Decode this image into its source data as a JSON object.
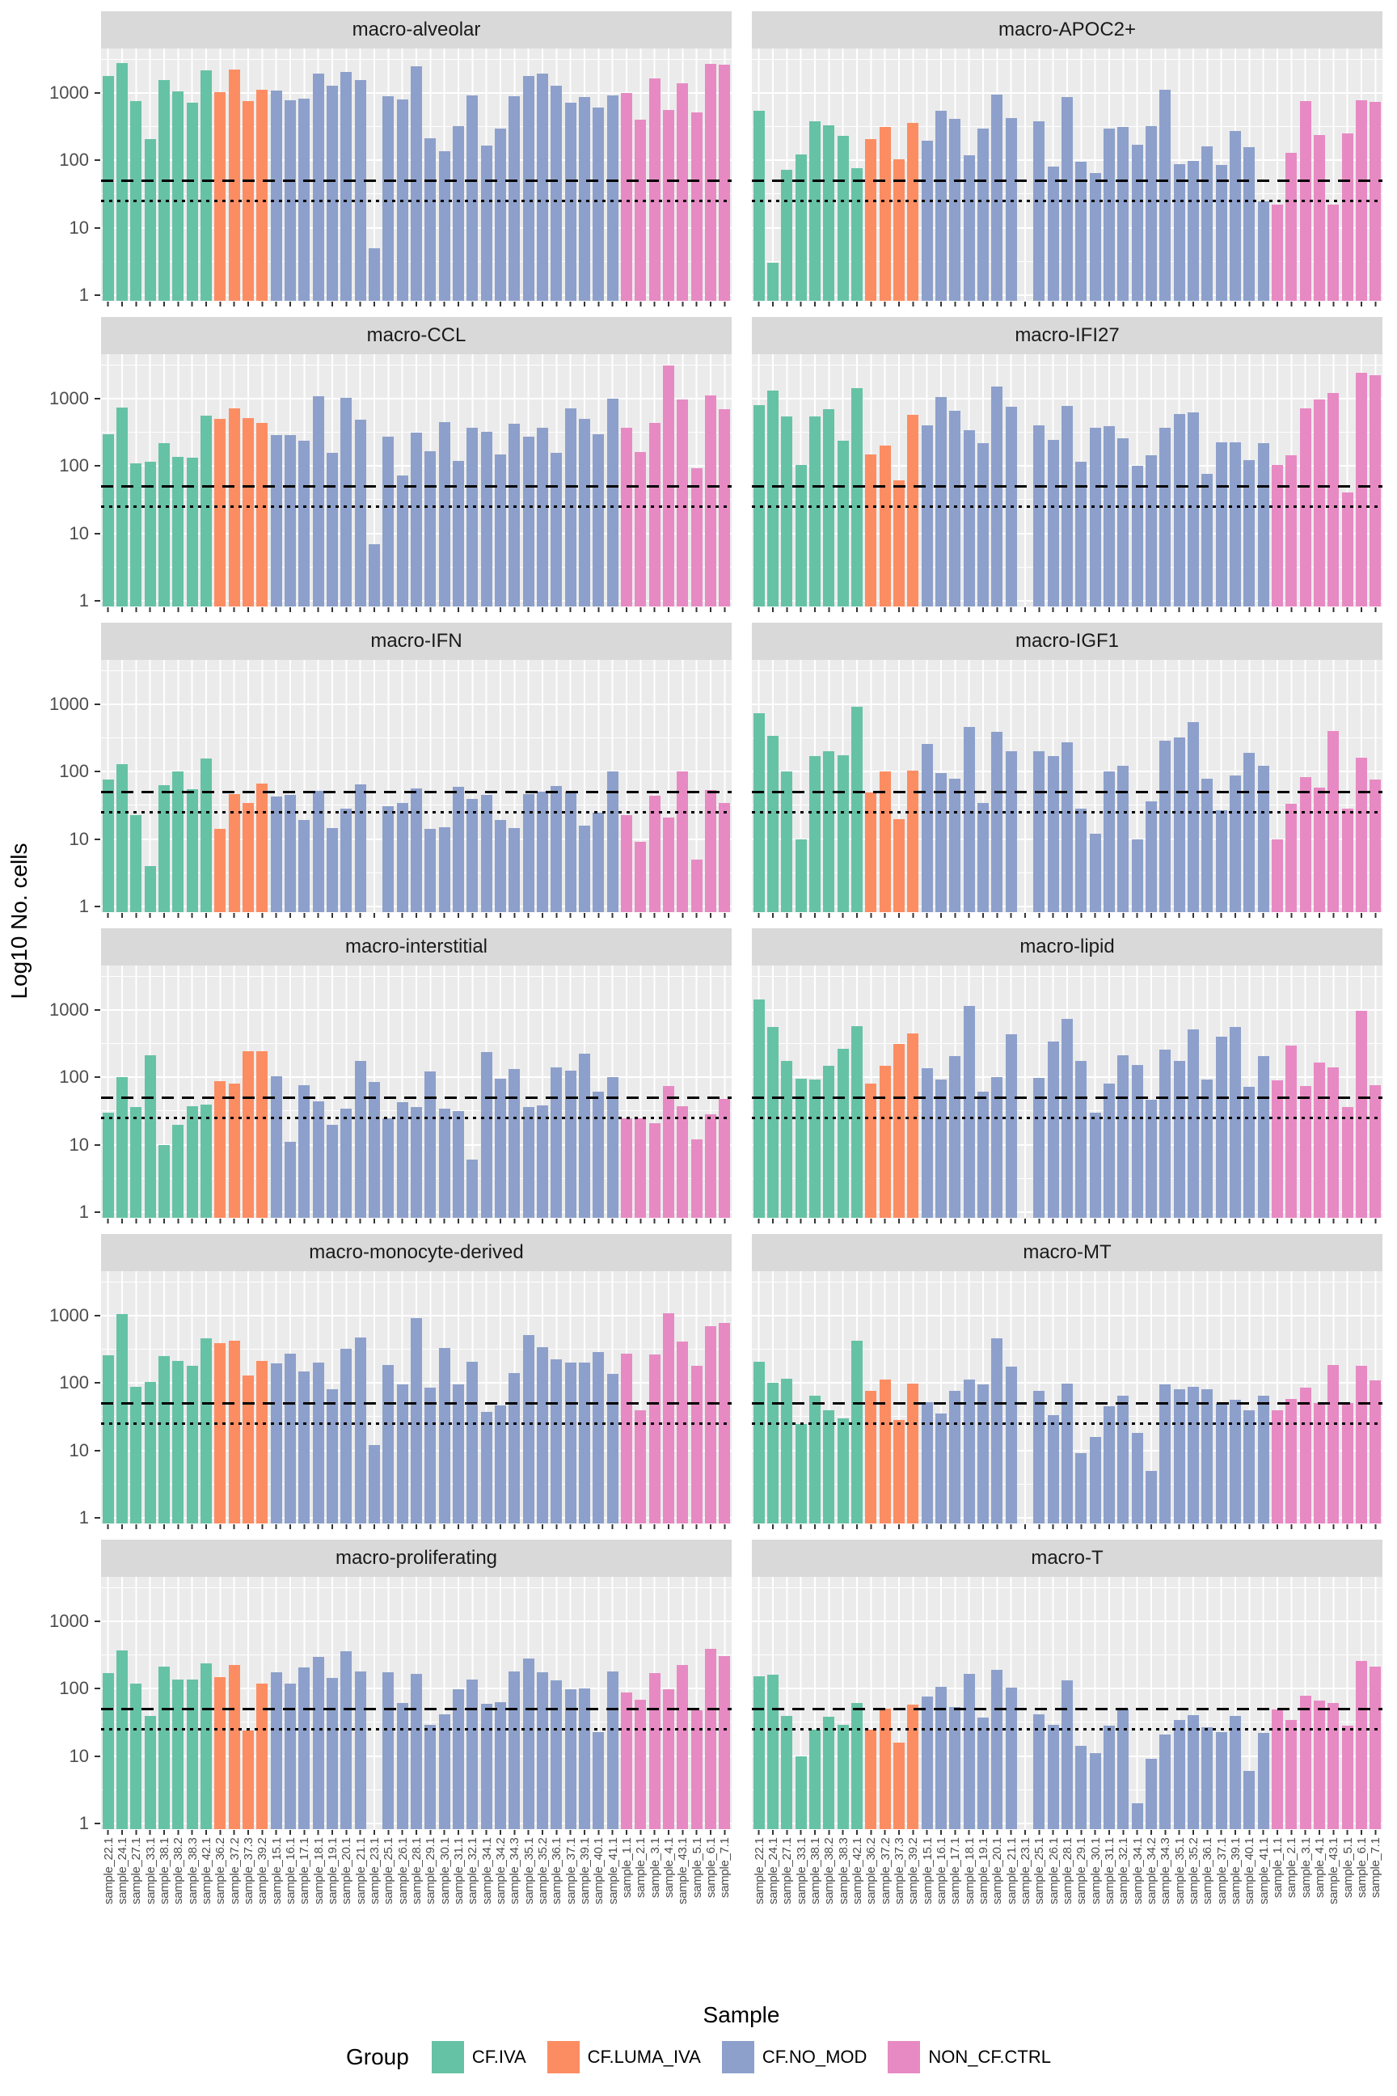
{
  "figure": {
    "y_axis_title": "Log10 No. cells",
    "x_axis_title": "Sample",
    "y_tick_labels": [
      "1000",
      "100",
      "10",
      "1"
    ]
  },
  "legend": {
    "title": "Group",
    "items": [
      {
        "label": "CF.IVA",
        "color": "#66C2A5"
      },
      {
        "label": "CF.LUMA_IVA",
        "color": "#FC8D62"
      },
      {
        "label": "CF.NO_MOD",
        "color": "#8DA0CB"
      },
      {
        "label": "NON_CF.CTRL",
        "color": "#E78AC3"
      }
    ]
  },
  "chart_data": {
    "type": "bar",
    "scale": "log10",
    "ylabel": "Log10 No. cells",
    "xlabel": "Sample",
    "ylim": [
      0.82,
      4600
    ],
    "y_major_ticks": [
      1000,
      100,
      10,
      1
    ],
    "reference_lines": {
      "dashed": 50,
      "dotted": 25
    },
    "grid": "on",
    "legend_position": "bottom",
    "group_sizes": [
      8,
      4,
      25,
      8
    ],
    "samples": [
      "sample_22.1",
      "sample_24.1",
      "sample_27.1",
      "sample_33.1",
      "sample_38.1",
      "sample_38.2",
      "sample_38.3",
      "sample_42.1",
      "sample_36.2",
      "sample_37.2",
      "sample_37.3",
      "sample_39.2",
      "sample_15.1",
      "sample_16.1",
      "sample_17.1",
      "sample_18.1",
      "sample_19.1",
      "sample_20.1",
      "sample_21.1",
      "sample_23.1",
      "sample_25.1",
      "sample_26.1",
      "sample_28.1",
      "sample_29.1",
      "sample_30.1",
      "sample_31.1",
      "sample_32.1",
      "sample_34.1",
      "sample_34.2",
      "sample_34.3",
      "sample_35.1",
      "sample_35.2",
      "sample_36.1",
      "sample_37.1",
      "sample_39.1",
      "sample_40.1",
      "sample_41.1",
      "sample_1.1",
      "sample_2.1",
      "sample_3.1",
      "sample_4.1",
      "sample_43.1",
      "sample_5.1",
      "sample_6.1",
      "sample_7.1"
    ],
    "panels": [
      {
        "title": "macro-alveolar",
        "values": [
          1800,
          2780,
          760,
          205,
          1560,
          1050,
          720,
          2170,
          1040,
          2240,
          760,
          1120,
          1100,
          770,
          830,
          1940,
          1280,
          2050,
          1560,
          5,
          890,
          800,
          2500,
          212,
          135,
          320,
          920,
          165,
          295,
          890,
          1780,
          1920,
          1300,
          710,
          860,
          600,
          930,
          1000,
          400,
          1640,
          560,
          1400,
          520,
          2700,
          2630
        ]
      },
      {
        "title": "macro-APOC2+",
        "values": [
          550,
          3,
          72,
          123,
          380,
          330,
          230,
          77,
          207,
          315,
          104,
          355,
          194,
          545,
          410,
          120,
          300,
          940,
          430,
          0,
          380,
          82,
          870,
          96,
          64,
          295,
          315,
          170,
          320,
          1120,
          88,
          97,
          160,
          86,
          270,
          158,
          25,
          22,
          130,
          760,
          240,
          22,
          250,
          770,
          740
        ]
      },
      {
        "title": "macro-CCL",
        "values": [
          295,
          740,
          109,
          116,
          217,
          138,
          134,
          560,
          507,
          710,
          520,
          440,
          290,
          290,
          240,
          1100,
          158,
          1040,
          490,
          7,
          270,
          73,
          310,
          165,
          445,
          120,
          375,
          325,
          150,
          420,
          273,
          365,
          158,
          710,
          500,
          295,
          1000,
          375,
          162,
          440,
          3070,
          980,
          92,
          1130,
          700
        ]
      },
      {
        "title": "macro-IFI27",
        "values": [
          800,
          1330,
          550,
          104,
          545,
          690,
          240,
          1440,
          148,
          203,
          61,
          570,
          405,
          1060,
          665,
          337,
          216,
          1510,
          750,
          0,
          405,
          242,
          790,
          117,
          370,
          395,
          260,
          100,
          143,
          370,
          585,
          630,
          77,
          222,
          222,
          124,
          216,
          104,
          145,
          715,
          960,
          1200,
          41,
          2400,
          2200
        ]
      },
      {
        "title": "macro-IFN",
        "values": [
          77,
          128,
          23,
          4,
          63,
          102,
          55,
          158,
          14,
          47,
          34,
          66,
          43,
          45,
          19,
          52,
          14.5,
          28.5,
          64,
          0,
          31,
          34,
          57,
          14,
          15,
          60,
          39,
          45,
          19,
          14.5,
          47,
          50,
          61,
          51,
          16,
          25,
          100,
          23,
          9,
          44,
          21,
          100,
          5,
          54,
          34
        ]
      },
      {
        "title": "macro-IGF1",
        "values": [
          745,
          345,
          100,
          10,
          170,
          200,
          175,
          910,
          49,
          102,
          20,
          104,
          260,
          96,
          79,
          465,
          34,
          395,
          200,
          0,
          200,
          170,
          275,
          28,
          12,
          100,
          123,
          10,
          36,
          290,
          325,
          545,
          79,
          27,
          87,
          190,
          124,
          10,
          33,
          84,
          58,
          405,
          28,
          162,
          77
        ]
      },
      {
        "title": "macro-interstitial",
        "values": [
          30,
          100,
          36,
          210,
          10,
          20,
          37,
          39,
          87,
          82,
          245,
          245,
          103,
          11,
          77,
          44,
          20,
          34,
          175,
          85,
          25,
          43,
          36,
          122,
          34,
          32,
          6,
          240,
          96,
          133,
          36,
          38,
          140,
          125,
          225,
          62,
          100,
          25,
          25,
          21,
          74,
          37,
          12,
          28,
          48
        ]
      },
      {
        "title": "macro-lipid",
        "values": [
          1440,
          560,
          175,
          96,
          93,
          148,
          262,
          570,
          82,
          148,
          310,
          455,
          135,
          93,
          205,
          1140,
          61,
          100,
          440,
          0,
          98,
          337,
          730,
          177,
          30,
          80,
          210,
          153,
          47,
          258,
          177,
          515,
          93,
          400,
          560,
          73,
          205,
          90,
          300,
          75,
          168,
          142,
          36,
          975,
          77
        ]
      },
      {
        "title": "macro-monocyte-derived",
        "values": [
          260,
          1070,
          88,
          104,
          250,
          215,
          182,
          465,
          395,
          425,
          130,
          215,
          194,
          272,
          150,
          200,
          81,
          320,
          475,
          12,
          185,
          95,
          910,
          86,
          330,
          95,
          208,
          37,
          47,
          140,
          520,
          340,
          225,
          200,
          203,
          285,
          135,
          270,
          40,
          265,
          1090,
          415,
          180,
          690,
          790
        ]
      },
      {
        "title": "macro-MT",
        "values": [
          207,
          100,
          117,
          25,
          65,
          40,
          30,
          425,
          77,
          112,
          28,
          99,
          52,
          35,
          77,
          114,
          95,
          460,
          174,
          0,
          76,
          33,
          97,
          9,
          16,
          45,
          64,
          18,
          5,
          96,
          82,
          88,
          81,
          49,
          57,
          40,
          64,
          40,
          58,
          85,
          51,
          185,
          50,
          182,
          110
        ]
      },
      {
        "title": "macro-proliferating",
        "values": [
          170,
          370,
          120,
          40,
          215,
          135,
          135,
          235,
          150,
          228,
          24,
          120,
          177,
          118,
          208,
          295,
          145,
          355,
          180,
          0,
          177,
          61,
          167,
          29,
          42,
          97,
          136,
          60,
          63,
          178,
          282,
          174,
          132,
          97,
          102,
          23,
          178,
          88,
          68,
          170,
          97,
          228,
          48,
          390,
          305
        ]
      },
      {
        "title": "macro-T",
        "values": [
          154,
          163,
          40,
          10,
          25,
          38,
          29,
          61,
          25,
          51,
          16,
          58,
          76,
          106,
          54,
          165,
          37,
          190,
          103,
          0,
          42,
          29,
          134,
          14,
          11,
          28,
          51,
          2,
          9,
          21,
          34,
          41,
          27,
          23,
          39,
          6,
          22,
          49,
          34,
          78,
          66,
          61,
          28,
          256,
          215
        ]
      }
    ]
  }
}
